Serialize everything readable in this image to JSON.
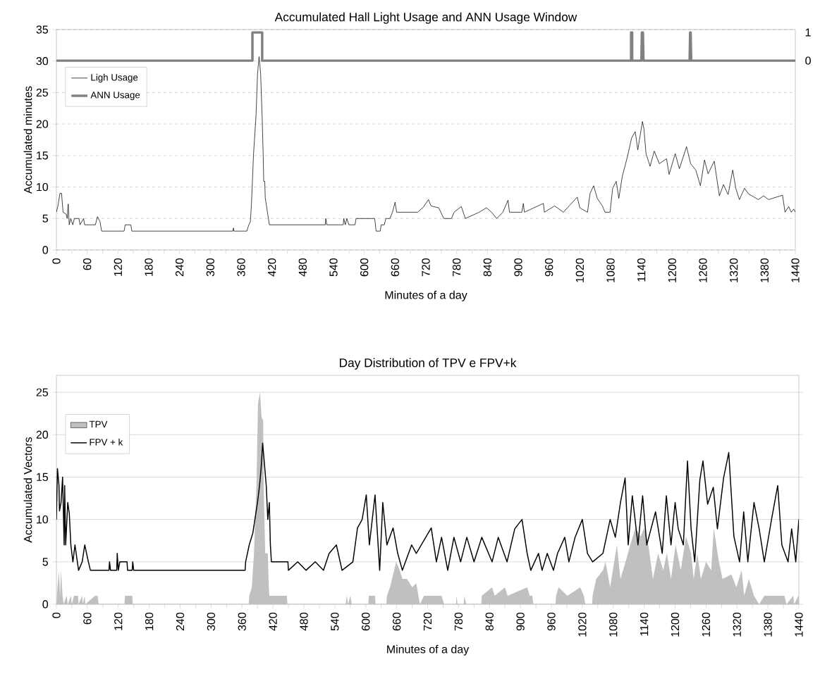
{
  "chart_data": [
    {
      "type": "line",
      "title": "Accumulated Hall Light Usage and ANN Usage Window",
      "xlabel": "Minutes of a day",
      "ylabel": "Accumulated minutes",
      "xlim": [
        0,
        1440
      ],
      "ylim": [
        0,
        35
      ],
      "y2lim": [
        -6.7,
        1.1
      ],
      "y2ticks": [
        0,
        1
      ],
      "yticks": [
        0,
        5,
        10,
        15,
        20,
        25,
        30,
        35
      ],
      "xticks": [
        0,
        {
          "value": 30,
          "label": null
        },
        60,
        {
          "value": 90,
          "label": null
        },
        120,
        {
          "value": 150,
          "label": null
        },
        180,
        {
          "value": 210,
          "label": null
        },
        240,
        {
          "value": 270,
          "label": null
        },
        300,
        {
          "value": 330,
          "label": null
        },
        360,
        {
          "value": 390,
          "label": null
        },
        420,
        {
          "value": 450,
          "label": null
        },
        480,
        {
          "value": 510,
          "label": null
        },
        540,
        {
          "value": 570,
          "label": null
        },
        600,
        {
          "value": 630,
          "label": null
        },
        660,
        {
          "value": 690,
          "label": null
        },
        720,
        {
          "value": 750,
          "label": null
        },
        780,
        {
          "value": 810,
          "label": null
        },
        840,
        {
          "value": 870,
          "label": null
        },
        900,
        {
          "value": 930,
          "label": null
        },
        960,
        {
          "value": 990,
          "label": null
        },
        1020,
        {
          "value": 1050,
          "label": null
        },
        1080,
        {
          "value": 1110,
          "label": null
        },
        1140,
        {
          "value": 1170,
          "label": null
        },
        1200,
        {
          "value": 1230,
          "label": null
        },
        1260,
        {
          "value": 1290,
          "label": null
        },
        1320,
        {
          "value": 1350,
          "label": null
        },
        1380,
        {
          "value": 1410,
          "label": null
        },
        1440
      ],
      "grid": "y",
      "legend": "top left",
      "series": [
        {
          "name": "Ligh Usage",
          "color": "#000000",
          "x": [
            0,
            3,
            7,
            10,
            13,
            19,
            21,
            23,
            25,
            28,
            32,
            35,
            44,
            46,
            53,
            55,
            76,
            80,
            85,
            88,
            132,
            134,
            145,
            147,
            344,
            345,
            346,
            371,
            375,
            378,
            380,
            382,
            384,
            389,
            392,
            395,
            398,
            401,
            403,
            404,
            406,
            407,
            415,
            524,
            525,
            527,
            559,
            560,
            563,
            566,
            570,
            582,
            584,
            602,
            620,
            621,
            623,
            631,
            633,
            639,
            642,
            650,
            655,
            660,
            663,
            704,
            715,
            725,
            730,
            745,
            755,
            770,
            775,
            789,
            797,
            824,
            838,
            848,
            858,
            870,
            880,
            883,
            907,
            910,
            912,
            949,
            951,
            971,
            988,
            1015,
            1020,
            1035,
            1040,
            1047,
            1054,
            1064,
            1069,
            1079,
            1084,
            1091,
            1096,
            1103,
            1108,
            1113,
            1121,
            1128,
            1133,
            1142,
            1145,
            1149,
            1157,
            1165,
            1175,
            1189,
            1194,
            1206,
            1214,
            1228,
            1236,
            1246,
            1255,
            1263,
            1270,
            1282,
            1292,
            1300,
            1309,
            1318,
            1324,
            1331,
            1341,
            1349,
            1368,
            1378,
            1388,
            1415,
            1420,
            1427,
            1432,
            1437,
            1440
          ],
          "values": [
            6,
            7,
            9,
            9,
            6,
            5.7,
            5,
            7.3,
            4,
            5,
            4,
            5,
            5,
            4,
            5,
            4,
            4,
            5.3,
            4.5,
            3,
            3,
            4,
            4,
            3,
            3,
            3.5,
            3,
            3,
            4,
            4.5,
            7.2,
            10.9,
            15,
            21.3,
            28,
            30.7,
            28,
            21,
            15,
            10.9,
            10.9,
            8.3,
            4,
            4,
            5,
            4,
            4,
            5,
            4,
            5,
            4,
            4,
            5,
            5,
            5,
            4.5,
            3,
            3,
            4,
            4,
            5,
            5,
            6,
            7.6,
            6,
            6,
            6.8,
            8,
            7,
            6.7,
            5,
            5,
            6,
            6.9,
            5,
            6,
            6.7,
            6,
            5,
            6,
            7.9,
            6,
            6,
            7.4,
            6,
            7.4,
            6,
            7,
            6,
            8.4,
            6.7,
            6,
            9,
            10.2,
            8.2,
            7,
            6,
            6,
            9.8,
            10.9,
            8.2,
            11.8,
            13.3,
            14.9,
            17.8,
            18.8,
            15.9,
            20.4,
            19.2,
            15.3,
            13.3,
            15.7,
            13.7,
            14.5,
            12,
            15.3,
            12.9,
            16.4,
            13.7,
            12.7,
            10.2,
            14.3,
            12.1,
            14.1,
            8.6,
            10.4,
            8.8,
            12.7,
            9.8,
            8,
            9.8,
            8.9,
            8,
            8.6,
            8,
            8.7,
            6,
            6.9,
            6,
            6.5,
            6
          ]
        },
        {
          "name": "ANN Usage",
          "color": "#808080",
          "axis": "y2",
          "x": [
            0,
            382,
            382,
            401,
            401,
            1120,
            1120,
            1122,
            1122,
            1140,
            1141,
            1143,
            1144,
            1234,
            1235,
            1236,
            1237,
            1440
          ],
          "values": [
            0,
            0,
            1,
            1,
            0,
            0,
            1,
            1,
            0,
            0,
            1,
            1,
            0,
            0,
            1,
            1,
            0,
            0
          ]
        }
      ]
    },
    {
      "type": "line",
      "title": "Day Distribution of TPV e FPV+k",
      "xlabel": "Minutes of a day",
      "ylabel": "Accumulated Vectors",
      "xlim": [
        0,
        1440
      ],
      "ylim": [
        0,
        27
      ],
      "yticks": [
        0,
        5,
        10,
        15,
        20,
        25
      ],
      "xticks": [
        0,
        {
          "value": 30,
          "label": null
        },
        60,
        {
          "value": 90,
          "label": null
        },
        120,
        {
          "value": 150,
          "label": null
        },
        180,
        {
          "value": 210,
          "label": null
        },
        240,
        {
          "value": 270,
          "label": null
        },
        300,
        {
          "value": 330,
          "label": null
        },
        360,
        {
          "value": 390,
          "label": null
        },
        420,
        {
          "value": 450,
          "label": null
        },
        480,
        {
          "value": 510,
          "label": null
        },
        540,
        {
          "value": 570,
          "label": null
        },
        600,
        {
          "value": 630,
          "label": null
        },
        660,
        {
          "value": 690,
          "label": null
        },
        720,
        {
          "value": 750,
          "label": null
        },
        780,
        {
          "value": 810,
          "label": null
        },
        840,
        {
          "value": 870,
          "label": null
        },
        900,
        {
          "value": 930,
          "label": null
        },
        960,
        {
          "value": 990,
          "label": null
        },
        1020,
        {
          "value": 1050,
          "label": null
        },
        1080,
        {
          "value": 1110,
          "label": null
        },
        1140,
        {
          "value": 1170,
          "label": null
        },
        1200,
        {
          "value": 1230,
          "label": null
        },
        1260,
        {
          "value": 1290,
          "label": null
        },
        1320,
        {
          "value": 1350,
          "label": null
        },
        1380,
        {
          "value": 1410,
          "label": null
        },
        1440
      ],
      "grid": "y",
      "legend": "top left",
      "series": [
        {
          "name": "TPV",
          "type": "area",
          "color": "#c0c0c0",
          "x": [
            0,
            2,
            5,
            7,
            9,
            12,
            14,
            20,
            22,
            28,
            30,
            34,
            42,
            43,
            50,
            51,
            55,
            56,
            75,
            80,
            82,
            132,
            133,
            147,
            148,
            373,
            374,
            379,
            383,
            388,
            391,
            395,
            398,
            401,
            402,
            405,
            410,
            412,
            413,
            447,
            448,
            561,
            563,
            566,
            570,
            573,
            605,
            606,
            618,
            619,
            640,
            641,
            647,
            659,
            666,
            671,
            680,
            690,
            698,
            705,
            713,
            747,
            752,
            775,
            776,
            778,
            790,
            791,
            795,
            824,
            825,
            845,
            850,
            870,
            875,
            913,
            918,
            923,
            925,
            968,
            969,
            974,
            991,
            1016,
            1023,
            1026,
            1039,
            1040,
            1047,
            1060,
            1065,
            1074,
            1087,
            1094,
            1104,
            1113,
            1123,
            1133,
            1140,
            1148,
            1157,
            1167,
            1177,
            1184,
            1192,
            1201,
            1211,
            1221,
            1231,
            1236,
            1243,
            1250,
            1260,
            1270,
            1275,
            1285,
            1292,
            1309,
            1319,
            1329,
            1334,
            1343,
            1353,
            1363,
            1373,
            1412,
            1416,
            1429,
            1431,
            1439,
            1440
          ],
          "values": [
            0,
            2,
            3.9,
            1,
            4,
            1,
            0,
            1,
            0,
            1,
            0,
            1,
            1,
            0,
            1,
            0,
            1,
            0,
            1,
            1,
            0,
            0,
            1,
            1,
            0,
            0,
            1,
            2,
            5.8,
            14,
            23.7,
            25,
            22,
            21.7,
            14,
            6,
            6,
            2,
            1,
            1,
            0,
            0,
            1,
            0,
            1,
            0,
            0,
            1,
            1,
            0,
            0,
            1,
            2,
            5,
            4,
            3,
            3,
            2,
            2.5,
            0,
            1,
            1,
            0,
            0,
            1,
            0,
            0,
            1,
            0,
            0,
            1,
            2,
            1,
            2,
            1,
            2,
            1,
            1,
            0,
            0,
            1,
            2,
            1,
            2,
            1,
            0,
            0,
            1,
            3,
            4,
            5,
            2,
            7,
            3,
            5,
            7,
            9,
            8,
            9,
            7,
            3,
            6,
            4,
            6,
            3,
            7,
            4,
            8,
            6,
            3,
            6,
            3,
            5,
            4,
            9,
            5,
            3,
            3.5,
            2,
            4,
            1,
            3,
            1,
            0,
            1,
            1,
            0,
            1,
            0,
            1,
            1
          ]
        },
        {
          "name": "FPV + k",
          "color": "#000000",
          "x": [
            0,
            2,
            5,
            6,
            9,
            12,
            15,
            16,
            18,
            22,
            25,
            28,
            32,
            36,
            43,
            50,
            55,
            62,
            66,
            75,
            102,
            103,
            105,
            117,
            118,
            120,
            123,
            137,
            138,
            147,
            148,
            150,
            366,
            367,
            374,
            381,
            385,
            390,
            394,
            397,
            400,
            403,
            407,
            410,
            413,
            415,
            417,
            449,
            450,
            468,
            484,
            502,
            518,
            529,
            543,
            554,
            575,
            584,
            593,
            601,
            607,
            618,
            627,
            633,
            641,
            653,
            662,
            671,
            689,
            698,
            727,
            737,
            747,
            759,
            771,
            784,
            796,
            810,
            825,
            845,
            857,
            874,
            889,
            903,
            913,
            920,
            935,
            942,
            952,
            964,
            972,
            986,
            994,
            1006,
            1020,
            1030,
            1040,
            1060,
            1074,
            1084,
            1094,
            1103,
            1109,
            1117,
            1128,
            1137,
            1145,
            1162,
            1175,
            1183,
            1192,
            1200,
            1206,
            1216,
            1224,
            1231,
            1238,
            1248,
            1254,
            1263,
            1274,
            1282,
            1294,
            1304,
            1314,
            1325,
            1333,
            1341,
            1353,
            1363,
            1373,
            1387,
            1399,
            1407,
            1419,
            1426,
            1434,
            1440
          ],
          "values": [
            10,
            16,
            14,
            11,
            12,
            15,
            7,
            14,
            7,
            12,
            10.7,
            7,
            5,
            7,
            4,
            5,
            7,
            5,
            4,
            4,
            4,
            5,
            4,
            4,
            6,
            4,
            5,
            5,
            4,
            4,
            5,
            4,
            4,
            5,
            7,
            8.4,
            10,
            12,
            14,
            16,
            19,
            16.9,
            14,
            10,
            12,
            7,
            5,
            5,
            4,
            5,
            4,
            5,
            4,
            6,
            7,
            4,
            5,
            9,
            10,
            12.9,
            7,
            12.9,
            4,
            12,
            7,
            9,
            6,
            4,
            7,
            6,
            9,
            5,
            7.9,
            4,
            7.9,
            5,
            7.9,
            5,
            7.9,
            5,
            7.9,
            5,
            8.9,
            10,
            6,
            4,
            6,
            4,
            6,
            4,
            6,
            7.9,
            5,
            7.9,
            10,
            6,
            5,
            6,
            10,
            7.9,
            12,
            14.9,
            7,
            12.8,
            7,
            12.8,
            7,
            10.9,
            6,
            12.8,
            7,
            12,
            8.9,
            7,
            16.9,
            8.9,
            5,
            14.7,
            16.9,
            11.8,
            13.8,
            8.9,
            14.9,
            17.9,
            8,
            5,
            10.9,
            5,
            12,
            8.9,
            5,
            10,
            14,
            7,
            5,
            8.9,
            5,
            10
          ]
        }
      ]
    }
  ]
}
